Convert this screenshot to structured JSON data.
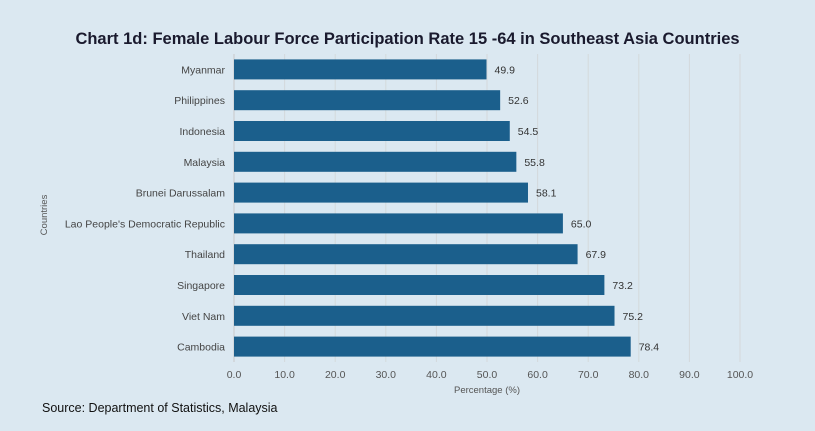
{
  "chart_data": {
    "type": "bar",
    "orientation": "horizontal",
    "title": "Chart 1d: Female Labour Force Participation Rate 15 -64 in Southeast Asia Countries",
    "categories": [
      "Myanmar",
      "Philippines",
      "Indonesia",
      "Malaysia",
      "Brunei Darussalam",
      "Lao People's Democratic Republic",
      "Thailand",
      "Singapore",
      "Viet Nam",
      "Cambodia"
    ],
    "values": [
      49.9,
      52.6,
      54.5,
      55.8,
      58.1,
      65.0,
      67.9,
      73.2,
      75.2,
      78.4
    ],
    "data_labels": [
      "49.9",
      "52.6",
      "54.5",
      "55.8",
      "58.1",
      "65.0",
      "67.9",
      "73.2",
      "75.2",
      "78.4"
    ],
    "xlabel": "Percentage (%)",
    "ylabel": "Countries",
    "xlim": [
      0,
      100
    ],
    "xticks": [
      "0.0",
      "10.0",
      "20.0",
      "30.0",
      "40.0",
      "50.0",
      "60.0",
      "70.0",
      "80.0",
      "90.0",
      "100.0"
    ],
    "grid": "vertical",
    "bar_color": "#1b5f8c",
    "background": "#dbe8f1"
  },
  "source": "Source: Department of Statistics, Malaysia"
}
